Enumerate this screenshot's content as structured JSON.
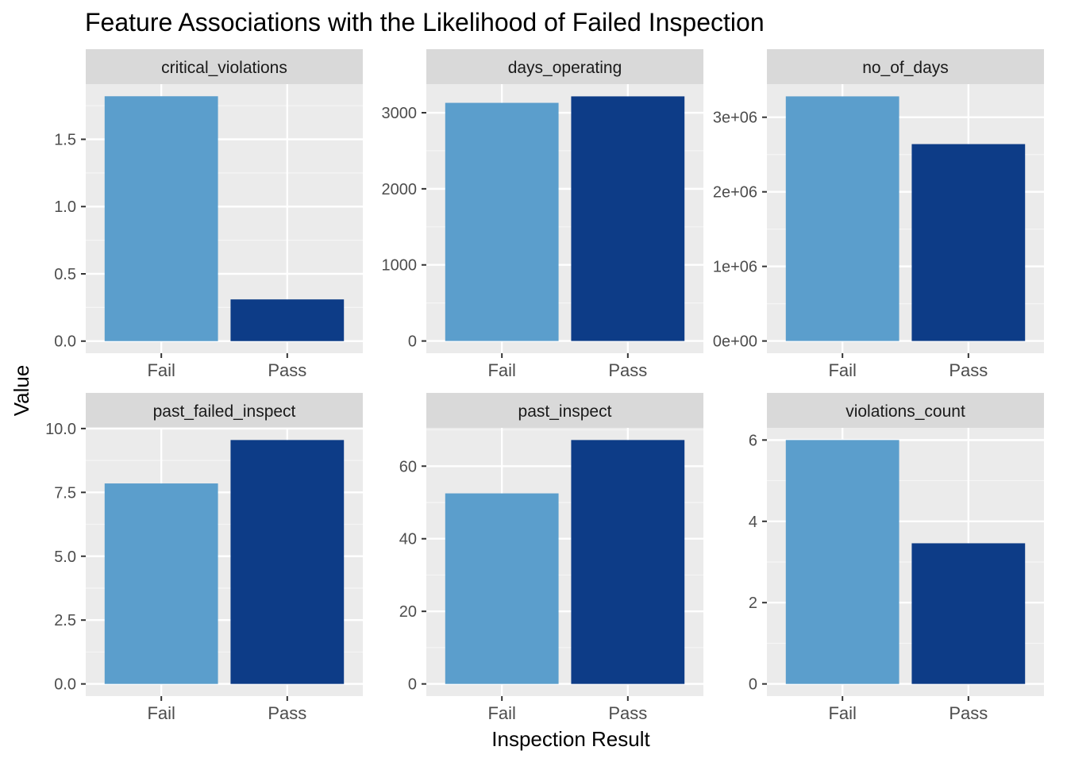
{
  "chart_data": {
    "type": "bar",
    "title": "Feature Associations with the Likelihood of Failed Inspection",
    "xlabel": "Inspection Result",
    "ylabel": "Value",
    "grid": true,
    "legend": "none",
    "colors": {
      "Fail": "#5b9ecc",
      "Pass": "#0d3c87"
    },
    "categories": [
      "Fail",
      "Pass"
    ],
    "facets": [
      {
        "name": "critical_violations",
        "values": [
          1.82,
          0.31
        ],
        "ylim": [
          -0.09,
          1.91
        ],
        "ticks": [
          0,
          0.5,
          1.0,
          1.5
        ],
        "tick_labels": [
          "0.0",
          "0.5",
          "1.0",
          "1.5"
        ]
      },
      {
        "name": "days_operating",
        "values": [
          3130,
          3215
        ],
        "ylim": [
          -160.75,
          3375.75
        ],
        "ticks": [
          0,
          1000,
          2000,
          3000
        ],
        "tick_labels": [
          "0",
          "1000",
          "2000",
          "3000"
        ]
      },
      {
        "name": "no_of_days",
        "values": [
          3280000,
          2640000
        ],
        "ylim": [
          -164000,
          3444000
        ],
        "ticks": [
          0,
          1000000,
          2000000,
          3000000
        ],
        "tick_labels": [
          "0e+00",
          "1e+06",
          "2e+06",
          "3e+06"
        ]
      },
      {
        "name": "past_failed_inspect",
        "values": [
          7.85,
          9.55
        ],
        "ylim": [
          -0.4775,
          10.0275
        ],
        "ticks": [
          0,
          2.5,
          5.0,
          7.5,
          10.0
        ],
        "tick_labels": [
          "0.0",
          "2.5",
          "5.0",
          "7.5",
          "10.0"
        ]
      },
      {
        "name": "past_inspect",
        "values": [
          52.5,
          67.2
        ],
        "ylim": [
          -3.36,
          70.56
        ],
        "ticks": [
          0,
          20,
          40,
          60
        ],
        "tick_labels": [
          "0",
          "20",
          "40",
          "60"
        ]
      },
      {
        "name": "violations_count",
        "values": [
          6.0,
          3.46
        ],
        "ylim": [
          -0.3,
          6.3
        ],
        "ticks": [
          0,
          2,
          4,
          6
        ],
        "tick_labels": [
          "0",
          "2",
          "4",
          "6"
        ]
      }
    ]
  }
}
